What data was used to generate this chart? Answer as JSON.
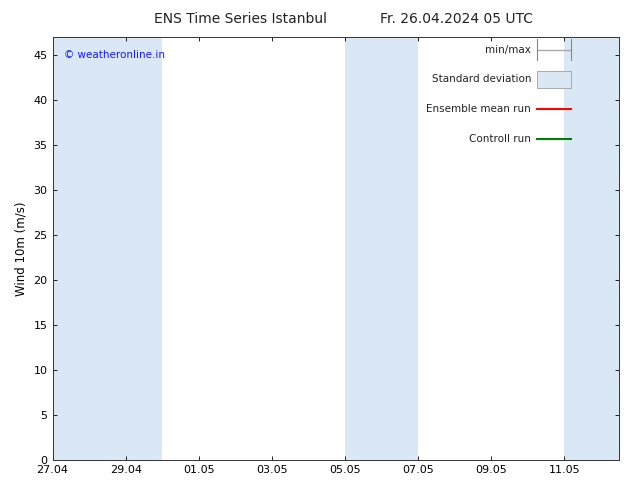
{
  "title_left": "ENS Time Series Istanbul",
  "title_right": "Fr. 26.04.2024 05 UTC",
  "ylabel": "Wind 10m (m/s)",
  "watermark": "© weatheronline.in",
  "watermark_color": "#1a1aff",
  "ylim": [
    0,
    47
  ],
  "yticks": [
    0,
    5,
    10,
    15,
    20,
    25,
    30,
    35,
    40,
    45
  ],
  "xlim": [
    0,
    15.5
  ],
  "xtick_labels": [
    "27.04",
    "29.04",
    "01.05",
    "03.05",
    "05.05",
    "07.05",
    "09.05",
    "11.05"
  ],
  "xtick_positions": [
    0,
    2,
    4,
    6,
    8,
    10,
    12,
    14
  ],
  "bg_band_color": "#dae8f5",
  "bg_bands": [
    [
      0,
      2
    ],
    [
      2,
      3
    ],
    [
      8,
      10
    ],
    [
      14,
      15.5
    ]
  ],
  "legend_labels": [
    "min/max",
    "Standard deviation",
    "Ensemble mean run",
    "Controll run"
  ],
  "legend_colors_line": [
    "#aaaaaa",
    "#cccccc",
    "#ff0000",
    "#008000"
  ],
  "legend_fill_color": "#dae8f5",
  "plot_bg_color": "#ffffff",
  "spine_color": "#333333",
  "title_fontsize": 10,
  "tick_fontsize": 8,
  "ylabel_fontsize": 8.5,
  "watermark_fontsize": 7.5,
  "legend_fontsize": 7.5
}
